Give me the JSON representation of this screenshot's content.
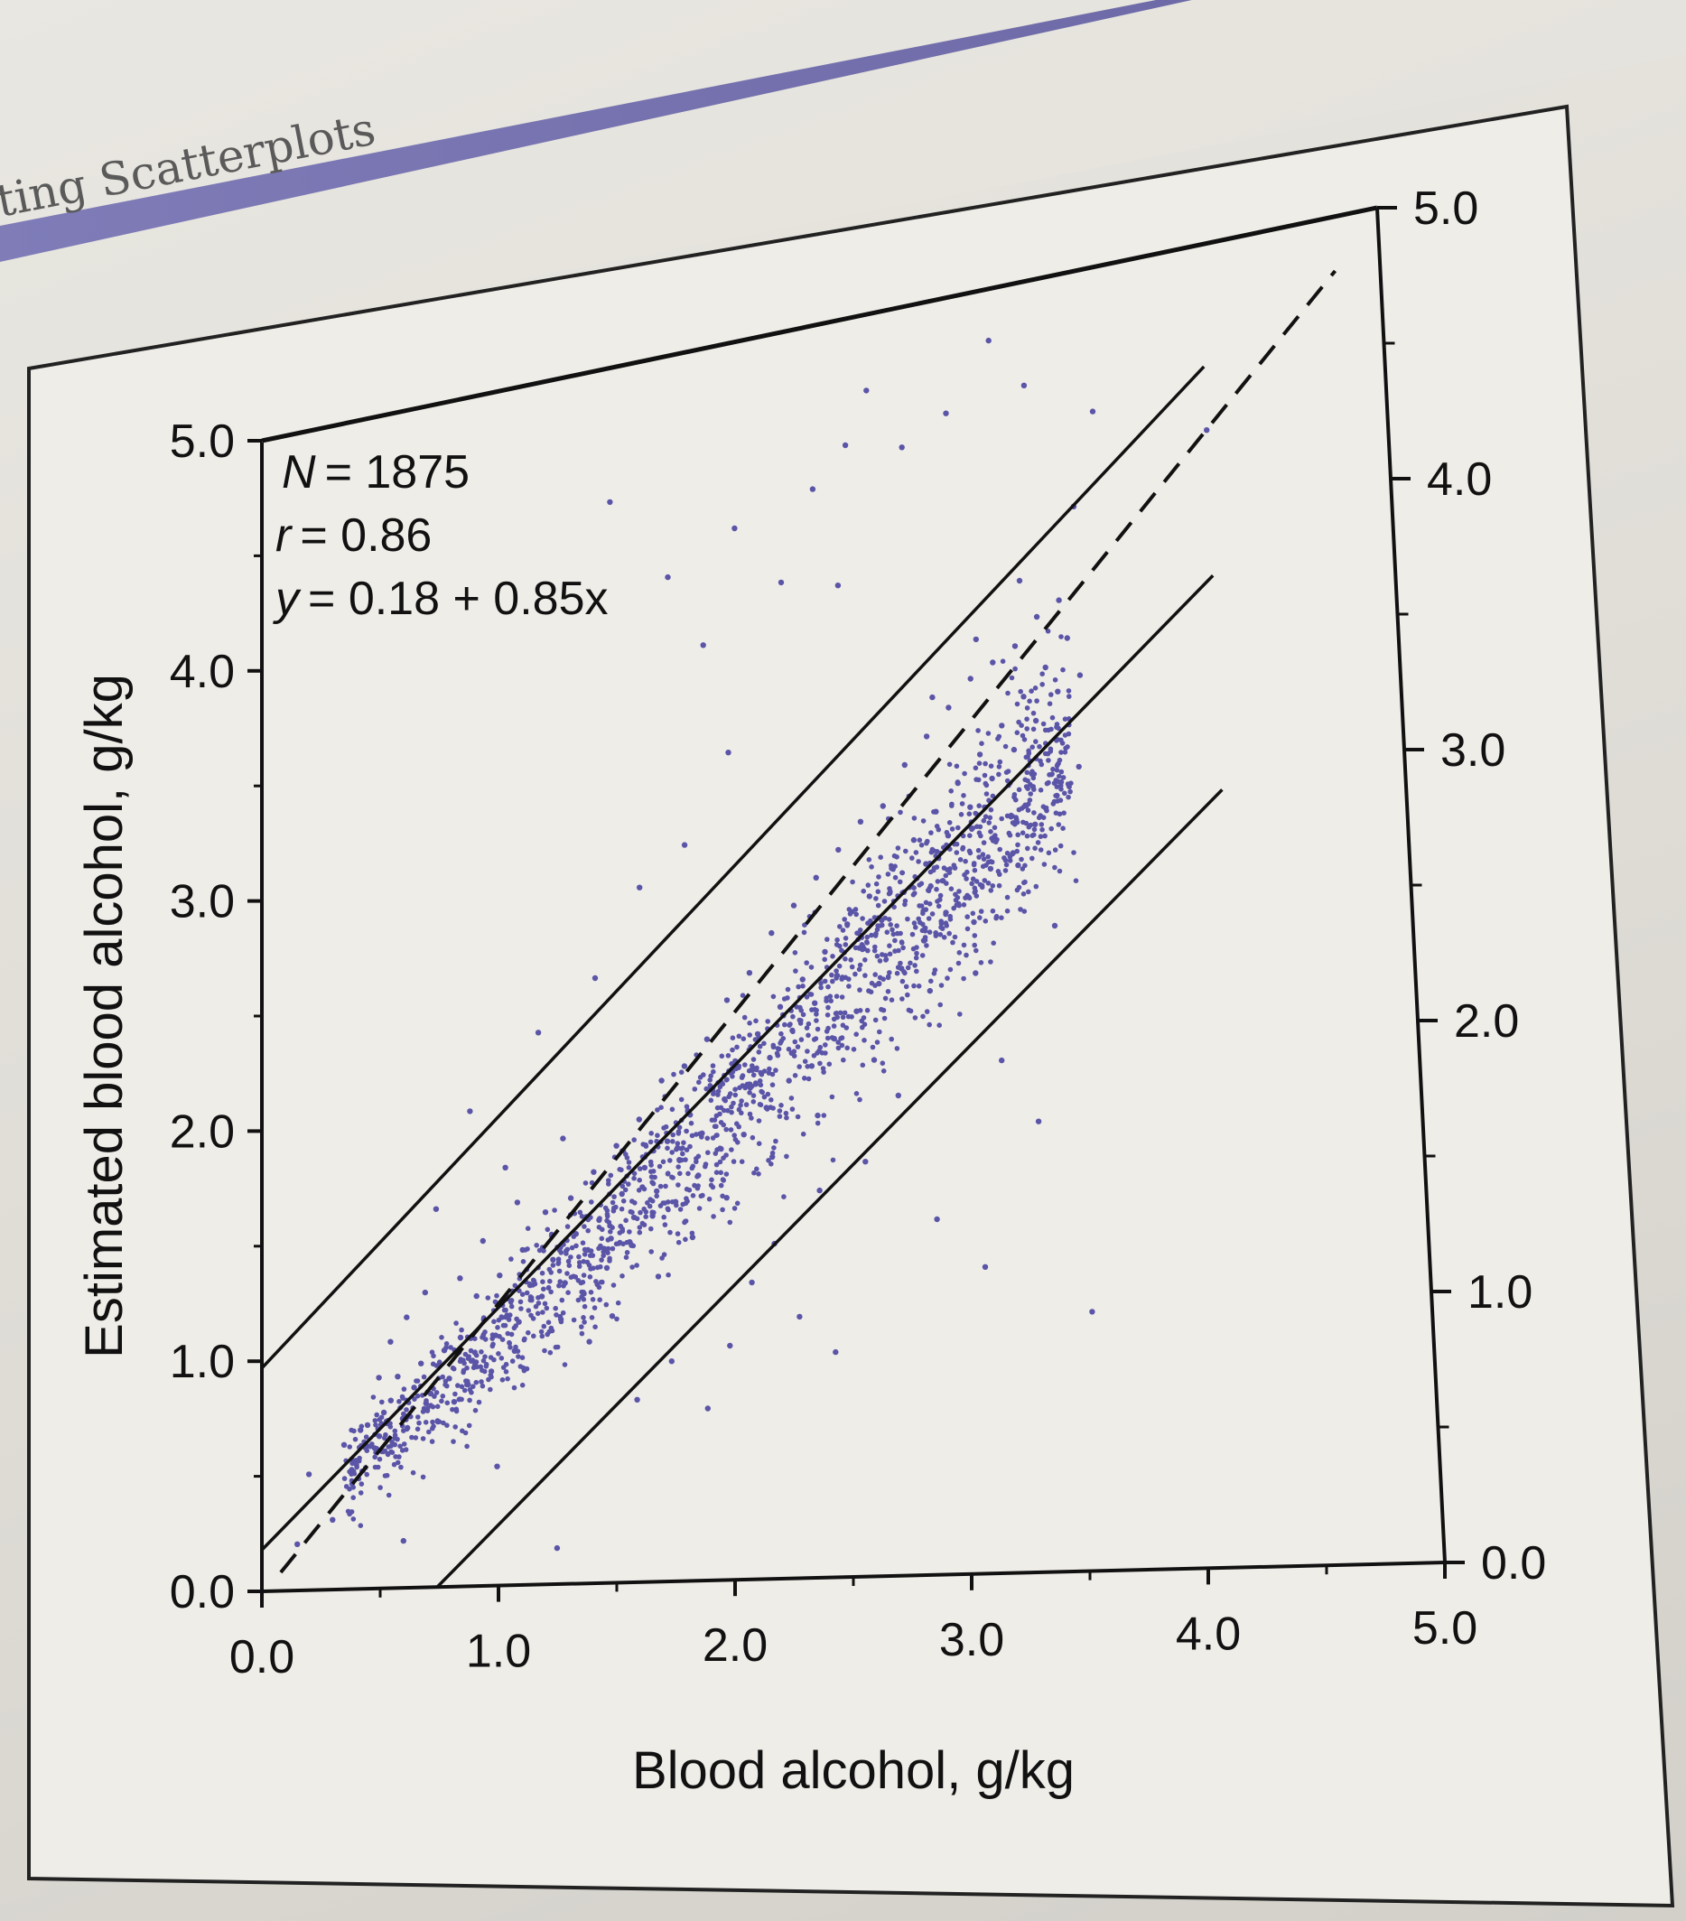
{
  "page": {
    "section_title": "ting Scatterplots"
  },
  "chart_data": {
    "type": "scatter",
    "xlabel": "Blood alcohol, g/kg",
    "ylabel": "Estimated blood alcohol, g/kg",
    "xlim": [
      0.0,
      5.0
    ],
    "ylim": [
      0.0,
      5.0
    ],
    "x_ticks": [
      "0.0",
      "1.0",
      "2.0",
      "3.0",
      "4.0",
      "5.0"
    ],
    "y_ticks": [
      "0.0",
      "1.0",
      "2.0",
      "3.0",
      "4.0",
      "5.0"
    ],
    "right_axis_ticks": [
      "0.0",
      "1.0",
      "2.0",
      "3.0",
      "4.0",
      "5.0"
    ],
    "grid": false,
    "point_color": "#5b55a8",
    "stats": {
      "n_label": "N",
      "n_value": "= 1875",
      "r_label": "r",
      "r_value": "= 0.86",
      "eq_label": "y",
      "eq_value": "= 0.18 + 0.85x"
    },
    "regression": {
      "intercept": 0.18,
      "slope": 0.85,
      "x_range": [
        0.0,
        4.2
      ]
    },
    "identity_line": {
      "intercept": 0.0,
      "slope": 1.0,
      "x_range": [
        0.08,
        4.8
      ]
    },
    "prediction_bounds": [
      {
        "intercept": 0.97,
        "slope": 0.85,
        "x_range": [
          0.0,
          4.2
        ]
      },
      {
        "intercept": -0.63,
        "slope": 0.85,
        "x_range": [
          0.74,
          4.2
        ]
      }
    ],
    "points_summary": {
      "n": 1875,
      "x_range": [
        0.3,
        3.6
      ],
      "note": "dense cloud around the regression line; scattered outliers above and below"
    },
    "points": [
      [
        0.35,
        0.62
      ],
      [
        0.4,
        0.55
      ],
      [
        0.45,
        0.7
      ],
      [
        0.5,
        0.65
      ],
      [
        0.55,
        0.8
      ],
      [
        0.6,
        0.72
      ],
      [
        0.65,
        0.85
      ],
      [
        0.7,
        0.78
      ],
      [
        0.42,
        0.68
      ],
      [
        0.48,
        0.6
      ],
      [
        0.52,
        0.75
      ],
      [
        0.58,
        0.9
      ],
      [
        0.62,
        0.68
      ],
      [
        0.68,
        0.95
      ],
      [
        0.72,
        0.82
      ],
      [
        0.78,
        1.0
      ],
      [
        0.8,
        0.88
      ],
      [
        0.85,
        1.05
      ],
      [
        0.9,
        0.95
      ],
      [
        0.95,
        1.12
      ],
      [
        1.0,
        1.05
      ],
      [
        1.05,
        1.2
      ],
      [
        1.1,
        1.1
      ],
      [
        1.15,
        1.25
      ],
      [
        0.75,
        0.7
      ],
      [
        0.82,
        0.78
      ],
      [
        0.88,
        0.85
      ],
      [
        0.92,
        1.22
      ],
      [
        0.98,
        0.9
      ],
      [
        1.02,
        1.3
      ],
      [
        1.08,
        0.98
      ],
      [
        1.12,
        1.4
      ],
      [
        1.2,
        1.2
      ],
      [
        1.25,
        1.35
      ],
      [
        1.3,
        1.25
      ],
      [
        1.35,
        1.45
      ],
      [
        1.4,
        1.38
      ],
      [
        1.45,
        1.5
      ],
      [
        1.5,
        1.42
      ],
      [
        1.55,
        1.6
      ],
      [
        1.6,
        1.5
      ],
      [
        1.65,
        1.7
      ],
      [
        1.7,
        1.6
      ],
      [
        1.75,
        1.8
      ],
      [
        1.8,
        1.72
      ],
      [
        1.85,
        1.9
      ],
      [
        1.9,
        1.82
      ],
      [
        1.95,
        2.0
      ],
      [
        1.22,
        1.55
      ],
      [
        1.28,
        1.1
      ],
      [
        1.33,
        1.6
      ],
      [
        1.38,
        1.2
      ],
      [
        1.43,
        1.7
      ],
      [
        1.48,
        1.3
      ],
      [
        1.53,
        1.8
      ],
      [
        1.58,
        1.4
      ],
      [
        1.63,
        1.9
      ],
      [
        1.68,
        1.5
      ],
      [
        1.73,
        2.05
      ],
      [
        1.78,
        1.55
      ],
      [
        1.83,
        2.1
      ],
      [
        1.88,
        1.65
      ],
      [
        1.93,
        2.2
      ],
      [
        1.98,
        1.75
      ],
      [
        2.0,
        1.95
      ],
      [
        2.05,
        2.1
      ],
      [
        2.1,
        2.0
      ],
      [
        2.15,
        2.2
      ],
      [
        2.2,
        2.1
      ],
      [
        2.25,
        2.3
      ],
      [
        2.3,
        2.2
      ],
      [
        2.35,
        2.4
      ],
      [
        2.4,
        2.3
      ],
      [
        2.45,
        2.5
      ],
      [
        2.5,
        2.4
      ],
      [
        2.55,
        2.6
      ],
      [
        2.6,
        2.5
      ],
      [
        2.65,
        2.7
      ],
      [
        2.7,
        2.6
      ],
      [
        2.75,
        2.8
      ],
      [
        2.02,
        2.35
      ],
      [
        2.08,
        1.8
      ],
      [
        2.12,
        2.45
      ],
      [
        2.18,
        1.9
      ],
      [
        2.22,
        2.6
      ],
      [
        2.28,
        2.0
      ],
      [
        2.32,
        2.7
      ],
      [
        2.38,
        2.05
      ],
      [
        2.42,
        2.8
      ],
      [
        2.48,
        2.15
      ],
      [
        2.52,
        2.9
      ],
      [
        2.58,
        2.25
      ],
      [
        2.62,
        3.0
      ],
      [
        2.68,
        2.35
      ],
      [
        2.72,
        3.05
      ],
      [
        2.78,
        2.4
      ],
      [
        2.8,
        2.7
      ],
      [
        2.85,
        2.9
      ],
      [
        2.9,
        2.8
      ],
      [
        2.95,
        3.0
      ],
      [
        3.0,
        2.9
      ],
      [
        3.05,
        3.1
      ],
      [
        3.1,
        3.0
      ],
      [
        3.15,
        3.2
      ],
      [
        3.2,
        3.1
      ],
      [
        3.25,
        3.3
      ],
      [
        3.3,
        3.2
      ],
      [
        3.35,
        3.4
      ],
      [
        3.4,
        3.3
      ],
      [
        3.45,
        3.5
      ],
      [
        3.5,
        3.4
      ],
      [
        3.55,
        3.6
      ],
      [
        2.82,
        3.2
      ],
      [
        2.88,
        2.5
      ],
      [
        2.92,
        3.3
      ],
      [
        2.98,
        2.6
      ],
      [
        3.02,
        3.4
      ],
      [
        3.08,
        2.65
      ],
      [
        3.12,
        3.5
      ],
      [
        3.18,
        2.75
      ],
      [
        3.22,
        3.55
      ],
      [
        3.28,
        2.8
      ],
      [
        3.32,
        3.6
      ],
      [
        3.38,
        2.9
      ],
      [
        3.42,
        3.7
      ],
      [
        3.48,
        3.0
      ],
      [
        3.52,
        3.75
      ],
      [
        3.58,
        3.1
      ],
      [
        1.8,
        4.1
      ],
      [
        1.95,
        3.8
      ],
      [
        2.1,
        4.25
      ],
      [
        2.3,
        4.0
      ],
      [
        2.55,
        3.95
      ],
      [
        2.6,
        4.5
      ],
      [
        2.7,
        4.7
      ],
      [
        2.85,
        4.45
      ],
      [
        3.05,
        4.55
      ],
      [
        3.25,
        4.8
      ],
      [
        3.4,
        4.6
      ],
      [
        3.7,
        4.45
      ],
      [
        4.2,
        4.3
      ],
      [
        3.6,
        4.1
      ],
      [
        2.45,
        4.35
      ],
      [
        1.55,
        4.45
      ],
      [
        0.9,
        2.0
      ],
      [
        0.75,
        1.6
      ],
      [
        1.05,
        1.75
      ],
      [
        1.2,
        2.3
      ],
      [
        1.45,
        2.5
      ],
      [
        1.65,
        2.85
      ],
      [
        1.85,
        3.0
      ],
      [
        2.05,
        3.35
      ],
      [
        2.1,
        1.2
      ],
      [
        2.3,
        1.05
      ],
      [
        1.9,
        0.7
      ],
      [
        2.0,
        0.95
      ],
      [
        2.45,
        0.9
      ],
      [
        2.9,
        1.4
      ],
      [
        3.1,
        1.2
      ],
      [
        3.55,
        1.0
      ],
      [
        3.2,
        2.0
      ],
      [
        3.35,
        1.75
      ],
      [
        3.45,
        2.5
      ],
      [
        3.1,
        2.35
      ],
      [
        2.6,
        1.65
      ],
      [
        2.75,
        1.9
      ],
      [
        2.4,
        1.55
      ],
      [
        2.2,
        1.35
      ],
      [
        1.0,
        0.5
      ],
      [
        0.6,
        0.2
      ],
      [
        0.3,
        0.3
      ],
      [
        0.2,
        0.5
      ],
      [
        0.15,
        0.2
      ],
      [
        1.25,
        0.15
      ],
      [
        1.6,
        0.75
      ],
      [
        1.75,
        0.9
      ],
      [
        0.55,
        1.05
      ],
      [
        0.5,
        0.9
      ],
      [
        0.62,
        1.15
      ],
      [
        0.7,
        1.25
      ],
      [
        0.85,
        1.3
      ],
      [
        0.95,
        1.45
      ],
      [
        1.1,
        1.6
      ],
      [
        1.3,
        1.85
      ],
      [
        1.4,
        1.0
      ],
      [
        1.5,
        1.1
      ],
      [
        1.7,
        1.25
      ],
      [
        1.85,
        1.4
      ],
      [
        2.0,
        1.55
      ],
      [
        2.2,
        1.7
      ],
      [
        2.4,
        1.85
      ],
      [
        2.65,
        2.05
      ],
      [
        2.9,
        2.3
      ],
      [
        3.1,
        2.55
      ],
      [
        3.3,
        2.75
      ],
      [
        3.5,
        3.05
      ],
      [
        3.6,
        3.45
      ],
      [
        3.35,
        3.85
      ],
      [
        3.15,
        3.65
      ],
      [
        2.95,
        3.45
      ]
    ]
  }
}
